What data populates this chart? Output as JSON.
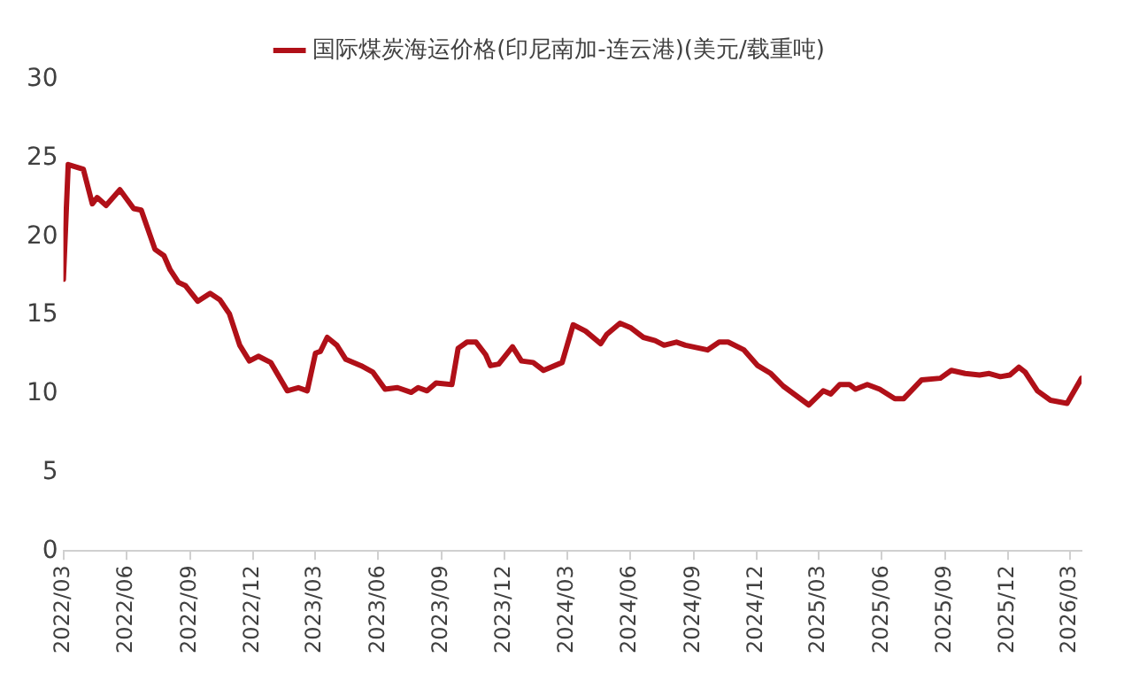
{
  "chart_data": {
    "type": "line",
    "legend": "top",
    "grid": false,
    "marker": "none",
    "line_style": "solid",
    "ylim": [
      0,
      30
    ],
    "yticks": [
      0,
      5,
      10,
      15,
      20,
      25,
      30
    ],
    "xlim": [
      "2022-03-01",
      "2026-03-18"
    ],
    "xticks": [
      {
        "value": "2022-03",
        "label": "2022/03"
      },
      {
        "value": "2022-06",
        "label": "2022/06"
      },
      {
        "value": "2022-09",
        "label": "2022/09"
      },
      {
        "value": "2022-12",
        "label": "2022/12"
      },
      {
        "value": "2023-03",
        "label": "2023/03"
      },
      {
        "value": "2023-06",
        "label": "2023/06"
      },
      {
        "value": "2023-09",
        "label": "2023/09"
      },
      {
        "value": "2023-12",
        "label": "2023/12"
      },
      {
        "value": "2024-03",
        "label": "2024/03"
      },
      {
        "value": "2024-06",
        "label": "2024/06"
      },
      {
        "value": "2024-09",
        "label": "2024/09"
      },
      {
        "value": "2024-12",
        "label": "2024/12"
      },
      {
        "value": "2025-03",
        "label": "2025/03"
      },
      {
        "value": "2025-06",
        "label": "2025/06"
      },
      {
        "value": "2025-09",
        "label": "2025/09"
      },
      {
        "value": "2025-12",
        "label": "2025/12"
      },
      {
        "value": "2026-03",
        "label": "2026/03"
      }
    ],
    "x": [
      "2022-03-01",
      "2022-03-08",
      "2022-03-30",
      "2022-04-12",
      "2022-04-19",
      "2022-05-02",
      "2022-05-22",
      "2022-06-11",
      "2022-06-22",
      "2022-07-12",
      "2022-07-25",
      "2022-08-03",
      "2022-08-15",
      "2022-08-25",
      "2022-09-12",
      "2022-09-30",
      "2022-10-14",
      "2022-10-28",
      "2022-11-12",
      "2022-11-26",
      "2022-12-09",
      "2022-12-27",
      "2023-01-20",
      "2023-02-05",
      "2023-02-18",
      "2023-03-02",
      "2023-03-09",
      "2023-03-19",
      "2023-04-02",
      "2023-04-15",
      "2023-05-07",
      "2023-05-24",
      "2023-06-11",
      "2023-06-29",
      "2023-07-19",
      "2023-07-29",
      "2023-08-11",
      "2023-08-24",
      "2023-09-16",
      "2023-09-25",
      "2023-10-08",
      "2023-10-21",
      "2023-11-04",
      "2023-11-11",
      "2023-11-23",
      "2023-12-13",
      "2023-12-26",
      "2024-01-12",
      "2024-01-27",
      "2024-02-23",
      "2024-03-10",
      "2024-03-28",
      "2024-04-19",
      "2024-04-28",
      "2024-05-17",
      "2024-06-02",
      "2024-06-20",
      "2024-07-07",
      "2024-07-20",
      "2024-08-07",
      "2024-08-20",
      "2024-09-21",
      "2024-10-08",
      "2024-10-21",
      "2024-11-13",
      "2024-12-03",
      "2024-12-22",
      "2025-01-09",
      "2025-02-15",
      "2025-03-08",
      "2025-03-19",
      "2025-04-01",
      "2025-04-15",
      "2025-04-24",
      "2025-05-11",
      "2025-05-29",
      "2025-06-20",
      "2025-07-03",
      "2025-07-29",
      "2025-08-25",
      "2025-09-10",
      "2025-09-30",
      "2025-10-21",
      "2025-11-04",
      "2025-11-20",
      "2025-12-04",
      "2025-12-17",
      "2025-12-26",
      "2026-01-13",
      "2026-02-01",
      "2026-02-25",
      "2026-03-18"
    ],
    "series": [
      {
        "name": "国际煤炭海运价格(印尼南加-连云港)(美元/载重吨)",
        "color": "#b01018",
        "values": [
          17.3,
          24.6,
          24.3,
          22.1,
          22.5,
          22.0,
          23.0,
          21.8,
          21.7,
          19.2,
          18.8,
          17.9,
          17.1,
          16.9,
          15.9,
          16.4,
          16.0,
          15.1,
          13.1,
          12.1,
          12.4,
          12.0,
          10.2,
          10.4,
          10.2,
          12.6,
          12.7,
          13.6,
          13.1,
          12.2,
          11.8,
          11.4,
          10.3,
          10.4,
          10.1,
          10.4,
          10.2,
          10.7,
          10.6,
          12.9,
          13.3,
          13.3,
          12.5,
          11.8,
          11.9,
          13.0,
          12.1,
          12.0,
          11.5,
          12.0,
          14.4,
          14.0,
          13.2,
          13.8,
          14.5,
          14.2,
          13.6,
          13.4,
          13.1,
          13.3,
          13.1,
          12.8,
          13.3,
          13.3,
          12.8,
          11.8,
          11.3,
          10.5,
          9.3,
          10.2,
          10.0,
          10.6,
          10.6,
          10.3,
          10.6,
          10.3,
          9.7,
          9.7,
          10.9,
          11.0,
          11.5,
          11.3,
          11.2,
          11.3,
          11.1,
          11.2,
          11.7,
          11.4,
          10.2,
          9.6,
          9.4,
          11.0
        ]
      }
    ]
  }
}
